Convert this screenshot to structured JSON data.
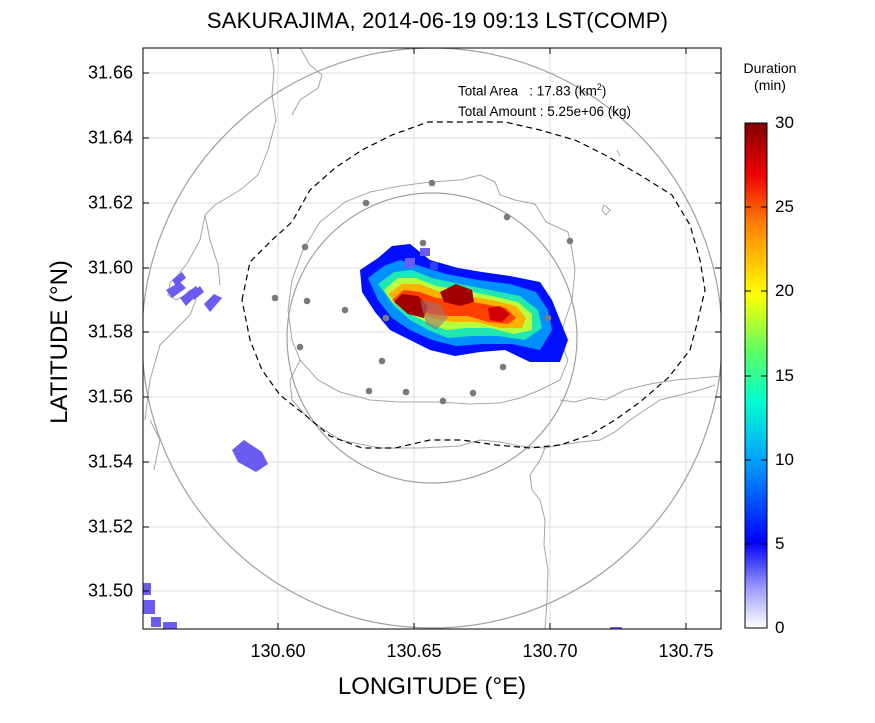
{
  "title": "SAKURAJIMA, 2014-06-19 09:13 LST(COMP)",
  "axes": {
    "xlabel": "LONGITUDE (°E)",
    "ylabel": "LATITUDE (°N)",
    "xticks": [
      "130.60",
      "130.65",
      "130.70",
      "130.75"
    ],
    "yticks": [
      "31.66",
      "31.64",
      "31.62",
      "31.60",
      "31.58",
      "31.56",
      "31.54",
      "31.52",
      "31.50"
    ],
    "xlim": [
      130.553,
      130.764
    ],
    "ylim": [
      31.488,
      31.667
    ]
  },
  "annotation": {
    "area_label": "Total Area   : 17.83 (km",
    "area_sup": "2",
    "area_close": ")",
    "amount_label": "Total Amount : 5.25e+06 (kg)"
  },
  "colorbar": {
    "title_line1": "Duration",
    "title_line2": "(min)",
    "ticks": [
      "30",
      "25",
      "20",
      "15",
      "10",
      "5",
      "0"
    ],
    "range": [
      0,
      30
    ]
  },
  "colors": {
    "low": "#6a5cf0",
    "high": "#7a0000"
  }
}
